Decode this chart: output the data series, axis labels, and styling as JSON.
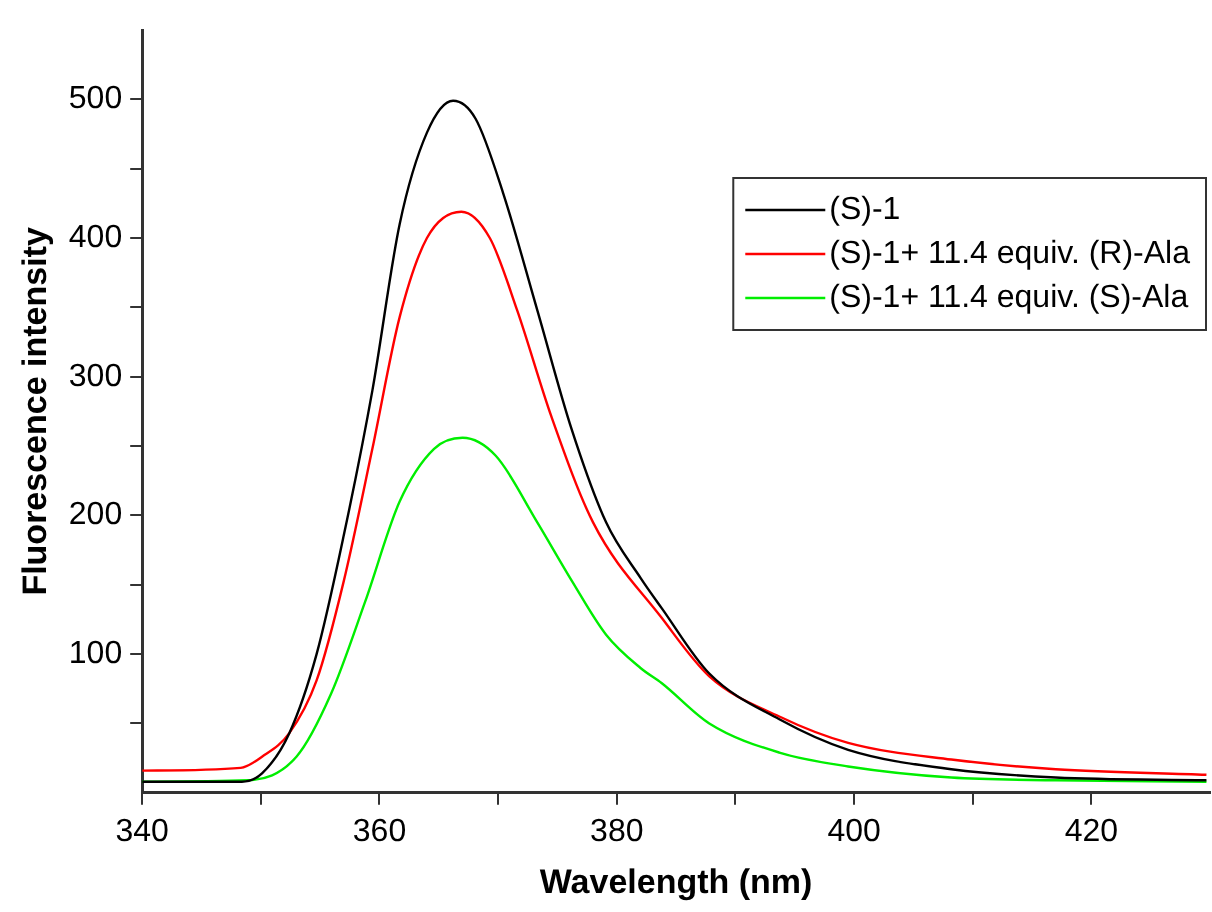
{
  "chart_data": {
    "type": "line",
    "xlabel": "Wavelength (nm)",
    "ylabel": "Fluorescence intensity",
    "xlim": [
      340,
      430
    ],
    "ylim": [
      0,
      550
    ],
    "xticks": [
      340,
      {
        "value": 350,
        "label": null
      },
      360,
      {
        "value": 370,
        "label": null
      },
      380,
      {
        "value": 390,
        "label": null
      },
      400,
      {
        "value": 410,
        "label": null
      },
      420
    ],
    "yticks": [
      {
        "value": 50,
        "label": null
      },
      100,
      {
        "value": 150,
        "label": null
      },
      200,
      {
        "value": 250,
        "label": null
      },
      300,
      {
        "value": 350,
        "label": null
      },
      400,
      {
        "value": 450,
        "label": null
      },
      500
    ],
    "grid": false,
    "legend": "top right",
    "marker": "none",
    "line_style": "solid",
    "series": [
      {
        "name": "(S)-1",
        "color": "#000000",
        "x": [
          340,
          348.4,
          350.1,
          352.4,
          354.7,
          357,
          359.4,
          361.7,
          364,
          366.2,
          368.1,
          370.4,
          373.3,
          376.2,
          379.1,
          382,
          383.8,
          387.8,
          393.7,
          399.5,
          408.2,
          417,
          429.7
        ],
        "values": [
          8,
          8,
          14,
          43,
          100,
          186,
          290,
          410,
          476,
          499,
          486,
          433,
          348,
          262,
          195,
          155,
          133,
          86,
          53,
          31,
          17,
          11,
          9
        ]
      },
      {
        "name": "(S)-1+ 11.4 equiv. (R)-Ala",
        "color": "#ff0000",
        "x": [
          340,
          348.3,
          350.1,
          352.4,
          354.7,
          357,
          359.4,
          361.7,
          364,
          366.9,
          369.3,
          371.6,
          374.5,
          378,
          383.8,
          387.8,
          393.7,
          399.5,
          408.2,
          417,
          429.7
        ],
        "values": [
          16,
          18,
          26,
          43,
          81,
          153,
          248,
          343,
          400,
          419,
          400,
          348,
          271,
          195,
          126,
          84,
          55,
          36,
          24,
          17,
          13
        ]
      },
      {
        "name": "(S)-1+ 11.4 equiv. (S)-Ala",
        "color": "#00ee00",
        "x": [
          340,
          348.9,
          353,
          355.9,
          358.8,
          361.7,
          364.6,
          367,
          369.8,
          373.3,
          376.2,
          379.1,
          382,
          383.8,
          387.8,
          393.7,
          399.5,
          408.2,
          417,
          429.7
        ],
        "values": [
          8,
          9,
          26,
          71,
          138,
          210,
          248,
          256,
          243,
          195,
          153,
          114,
          90,
          79,
          50,
          29,
          19,
          11,
          9,
          8
        ]
      }
    ]
  }
}
